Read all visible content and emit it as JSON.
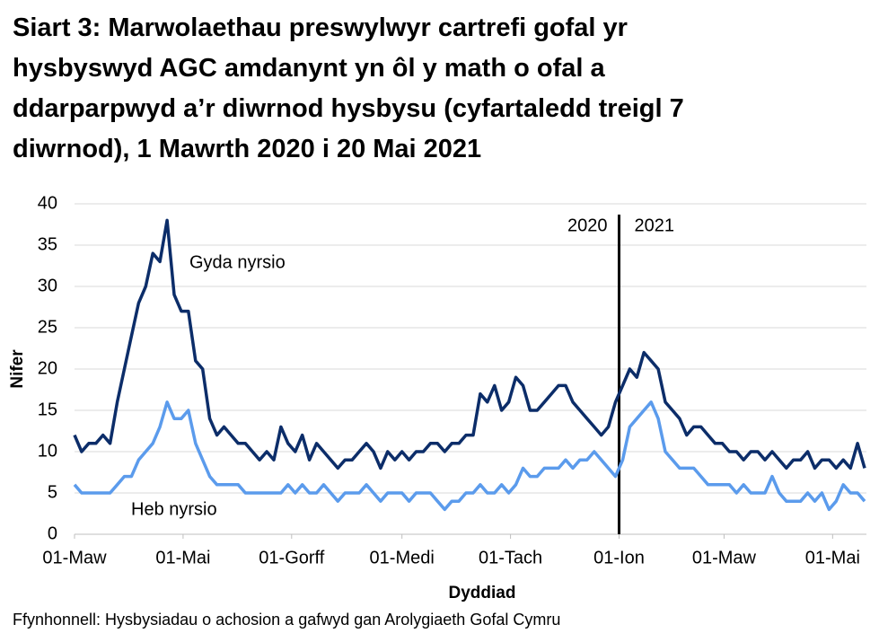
{
  "chart_data": {
    "type": "line",
    "title_lines": [
      "Siart 3: Marwolaethau preswylwyr cartrefi gofal yr",
      "hysbyswyd AGC amdanynt yn ôl y math o ofal a",
      "ddarparpwyd a’r diwrnod hysbysu (cyfartaledd treigl 7",
      "diwrnod), 1 Mawrth 2020 i 20 Mai 2021"
    ],
    "y_label": "Nifer",
    "x_label": "Dyddiad",
    "source": "Ffynhonnell: Hysbysiadau o achosion a gafwyd gan Arolygiaeth Gofal Cymru",
    "x": [
      "2020-03-01",
      "2020-03-05",
      "2020-03-09",
      "2020-03-13",
      "2020-03-17",
      "2020-03-21",
      "2020-03-25",
      "2020-03-29",
      "2020-04-02",
      "2020-04-06",
      "2020-04-10",
      "2020-04-14",
      "2020-04-18",
      "2020-04-22",
      "2020-04-26",
      "2020-04-30",
      "2020-05-04",
      "2020-05-08",
      "2020-05-12",
      "2020-05-16",
      "2020-05-20",
      "2020-05-24",
      "2020-05-28",
      "2020-06-01",
      "2020-06-05",
      "2020-06-09",
      "2020-06-13",
      "2020-06-17",
      "2020-06-21",
      "2020-06-25",
      "2020-06-29",
      "2020-07-03",
      "2020-07-07",
      "2020-07-11",
      "2020-07-15",
      "2020-07-19",
      "2020-07-23",
      "2020-07-27",
      "2020-07-31",
      "2020-08-04",
      "2020-08-08",
      "2020-08-12",
      "2020-08-16",
      "2020-08-20",
      "2020-08-24",
      "2020-08-28",
      "2020-09-01",
      "2020-09-05",
      "2020-09-09",
      "2020-09-13",
      "2020-09-17",
      "2020-09-21",
      "2020-09-25",
      "2020-09-29",
      "2020-10-03",
      "2020-10-07",
      "2020-10-11",
      "2020-10-15",
      "2020-10-19",
      "2020-10-23",
      "2020-10-27",
      "2020-10-31",
      "2020-11-04",
      "2020-11-08",
      "2020-11-12",
      "2020-11-16",
      "2020-11-20",
      "2020-11-24",
      "2020-11-28",
      "2020-12-02",
      "2020-12-06",
      "2020-12-10",
      "2020-12-14",
      "2020-12-18",
      "2020-12-22",
      "2020-12-26",
      "2020-12-30",
      "2021-01-03",
      "2021-01-07",
      "2021-01-11",
      "2021-01-15",
      "2021-01-19",
      "2021-01-23",
      "2021-01-27",
      "2021-01-31",
      "2021-02-04",
      "2021-02-08",
      "2021-02-12",
      "2021-02-16",
      "2021-02-20",
      "2021-02-24",
      "2021-02-28",
      "2021-03-04",
      "2021-03-08",
      "2021-03-12",
      "2021-03-16",
      "2021-03-20",
      "2021-03-24",
      "2021-03-28",
      "2021-04-01",
      "2021-04-05",
      "2021-04-09",
      "2021-04-13",
      "2021-04-17",
      "2021-04-21",
      "2021-04-25",
      "2021-04-29",
      "2021-05-03",
      "2021-05-07",
      "2021-05-11",
      "2021-05-15",
      "2021-05-19"
    ],
    "series": [
      {
        "name": "Gyda nyrsio",
        "color": "#0c2d69",
        "values": [
          12,
          10,
          11,
          11,
          12,
          11,
          16,
          20,
          24,
          28,
          30,
          34,
          33,
          38,
          29,
          27,
          27,
          21,
          20,
          14,
          12,
          13,
          12,
          11,
          11,
          10,
          9,
          10,
          9,
          13,
          11,
          10,
          12,
          9,
          11,
          10,
          9,
          8,
          9,
          9,
          10,
          11,
          10,
          8,
          10,
          9,
          10,
          9,
          10,
          10,
          11,
          11,
          10,
          11,
          11,
          12,
          12,
          17,
          16,
          18,
          15,
          16,
          19,
          18,
          15,
          15,
          16,
          17,
          18,
          18,
          16,
          15,
          14,
          13,
          12,
          13,
          16,
          18,
          20,
          19,
          22,
          21,
          20,
          16,
          15,
          14,
          12,
          13,
          13,
          12,
          11,
          11,
          10,
          10,
          9,
          10,
          10,
          9,
          10,
          9,
          8,
          9,
          9,
          10,
          8,
          9,
          9,
          8,
          9,
          8,
          11,
          8
        ]
      },
      {
        "name": "Heb nyrsio",
        "color": "#5b9bec",
        "values": [
          6,
          5,
          5,
          5,
          5,
          5,
          6,
          7,
          7,
          9,
          10,
          11,
          13,
          16,
          14,
          14,
          15,
          11,
          9,
          7,
          6,
          6,
          6,
          6,
          5,
          5,
          5,
          5,
          5,
          5,
          6,
          5,
          6,
          5,
          5,
          6,
          5,
          4,
          5,
          5,
          5,
          6,
          5,
          4,
          5,
          5,
          5,
          4,
          5,
          5,
          5,
          4,
          3,
          4,
          4,
          5,
          5,
          6,
          5,
          5,
          6,
          5,
          6,
          8,
          7,
          7,
          8,
          8,
          8,
          9,
          8,
          9,
          9,
          10,
          9,
          8,
          7,
          9,
          13,
          14,
          15,
          16,
          14,
          10,
          9,
          8,
          8,
          8,
          7,
          6,
          6,
          6,
          6,
          5,
          6,
          5,
          5,
          5,
          7,
          5,
          4,
          4,
          4,
          5,
          4,
          5,
          3,
          4,
          6,
          5,
          5,
          4
        ]
      }
    ],
    "xlim": [
      "2020-03-01",
      "2021-05-20"
    ],
    "xticks": [
      {
        "value": "2020-03-01",
        "label": "01-Maw"
      },
      {
        "value": "2020-05-01",
        "label": "01-Mai"
      },
      {
        "value": "2020-07-01",
        "label": "01-Gorff"
      },
      {
        "value": "2020-09-01",
        "label": "01-Medi"
      },
      {
        "value": "2020-11-01",
        "label": "01-Tach"
      },
      {
        "value": "2021-01-01",
        "label": "01-Ion"
      },
      {
        "value": "2021-03-01",
        "label": "01-Maw"
      },
      {
        "value": "2021-05-01",
        "label": "01-Mai"
      }
    ],
    "ylim": [
      0,
      40
    ],
    "yticks": [
      0,
      5,
      10,
      15,
      20,
      25,
      30,
      35,
      40
    ],
    "grid": true,
    "divider": {
      "x": "2021-01-01",
      "before": "2020",
      "after": "2021"
    }
  }
}
